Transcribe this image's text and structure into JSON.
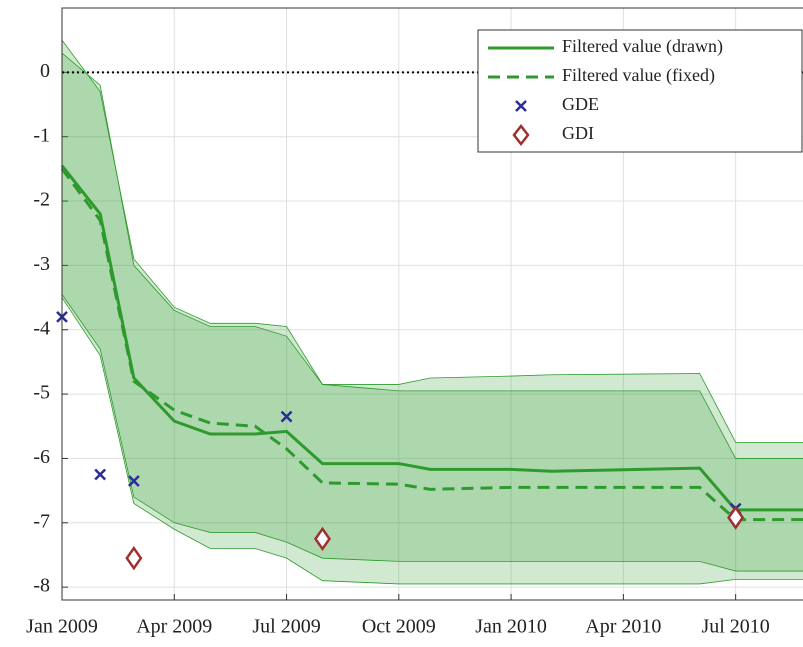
{
  "chart_data": {
    "type": "line",
    "x": [
      2009.0,
      2009.085,
      2009.16,
      2009.25,
      2009.33,
      2009.43,
      2009.5,
      2009.58,
      2009.75,
      2009.82,
      2010.0,
      2010.09,
      2010.42,
      2010.5,
      2010.65
    ],
    "xlim": [
      2009.0,
      2010.65
    ],
    "xticks": [
      {
        "value": 2009.0,
        "label": "Jan 2009"
      },
      {
        "value": 2009.25,
        "label": "Apr 2009"
      },
      {
        "value": 2009.5,
        "label": "Jul 2009"
      },
      {
        "value": 2009.75,
        "label": "Oct 2009"
      },
      {
        "value": 2010.0,
        "label": "Jan 2010"
      },
      {
        "value": 2010.25,
        "label": "Apr 2010"
      },
      {
        "value": 2010.5,
        "label": "Jul 2010"
      }
    ],
    "ylim": [
      -8.2,
      1.0
    ],
    "yticks": [
      0,
      -1,
      -2,
      -3,
      -4,
      -5,
      -6,
      -7,
      -8
    ],
    "grid": true,
    "legend": "upper right",
    "reference_lines": [
      0
    ],
    "bands": [
      {
        "color": "#2e9a2e",
        "upper": [
          0.5,
          -0.3,
          -2.9,
          -3.65,
          -3.9,
          -3.9,
          -3.95,
          -4.85,
          -4.85,
          -4.75,
          -4.72,
          -4.7,
          -4.68,
          -5.75,
          -5.75
        ],
        "lower": [
          -3.45,
          -4.3,
          -6.6,
          -7.0,
          -7.15,
          -7.15,
          -7.3,
          -7.55,
          -7.6,
          -7.6,
          -7.6,
          -7.6,
          -7.6,
          -7.75,
          -7.75
        ]
      },
      {
        "color": "#2e9a2e",
        "upper": [
          0.3,
          -0.2,
          -3.0,
          -3.7,
          -3.95,
          -3.95,
          -4.1,
          -4.85,
          -4.95,
          -4.95,
          -4.95,
          -4.95,
          -4.95,
          -6.0,
          -6.0
        ],
        "lower": [
          -3.5,
          -4.4,
          -6.7,
          -7.1,
          -7.4,
          -7.4,
          -7.55,
          -7.9,
          -7.95,
          -7.95,
          -7.95,
          -7.95,
          -7.95,
          -7.88,
          -7.88
        ]
      }
    ],
    "series": [
      {
        "name": "Filtered value (drawn)",
        "color": "#2e9a2e",
        "style": "solid",
        "values": [
          -1.45,
          -2.2,
          -4.75,
          -5.42,
          -5.62,
          -5.62,
          -5.58,
          -6.08,
          -6.08,
          -6.17,
          -6.17,
          -6.2,
          -6.15,
          -6.8,
          -6.8
        ]
      },
      {
        "name": "Filtered value (fixed)",
        "color": "#2e9a2e",
        "style": "dashed",
        "values": [
          -1.5,
          -2.3,
          -4.8,
          -5.25,
          -5.45,
          -5.5,
          -5.85,
          -6.38,
          -6.4,
          -6.48,
          -6.45,
          -6.45,
          -6.45,
          -6.95,
          -6.95
        ]
      },
      {
        "name": "GDE",
        "color": "#2b2b9b",
        "marker": "x",
        "x": [
          2009.0,
          2009.085,
          2009.16,
          2009.5,
          2010.5
        ],
        "values": [
          -3.8,
          -6.25,
          -6.35,
          -5.35,
          -6.78
        ]
      },
      {
        "name": "GDI",
        "color": "#a03030",
        "marker": "diamond",
        "x": [
          2009.16,
          2009.58,
          2010.5
        ],
        "values": [
          -7.55,
          -7.25,
          -6.92
        ]
      }
    ]
  }
}
